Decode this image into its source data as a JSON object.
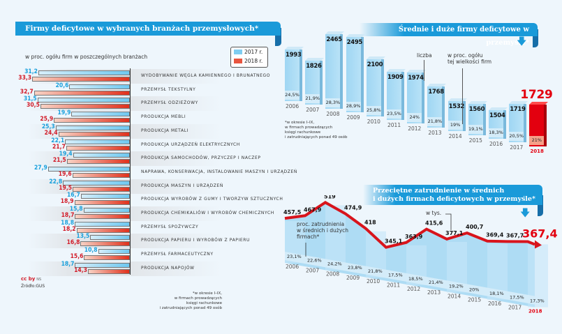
{
  "left_panel": {
    "title": "Firmy deficytowe w wybranych branżach przemysłowych*",
    "subtitle": "w proc. ogółu firm w poszczególnych branżach",
    "legend": [
      {
        "label": "2017 r.",
        "color": "#6ec8f0"
      },
      {
        "label": "2018 r.",
        "color": "#e0311c"
      }
    ],
    "source_icons": "cc by",
    "source_license": "NS",
    "source": "Źródło:GUS",
    "footnote": [
      "*w okresie I–IX,",
      "w firmach prowadzących",
      "księgi rachunkowe",
      "i zatrudniających ponad 49 osób"
    ]
  },
  "chart_data": [
    {
      "type": "bar",
      "orientation": "horizontal",
      "title": "Firmy deficytowe w wybranych branżach przemysłowych*",
      "subtitle": "w proc. ogółu firm w poszczególnych branżach",
      "categories": [
        "WYDOBYWANIE WĘGLA KAMIENNEGO I BRUNATNEGO",
        "PRZEMYSŁ TEKSTYLNY",
        "PRZEMYSŁ ODZIEŻOWY",
        "PRODUKCJA MEBLI",
        "PRODUKCJA METALI",
        "PRODUKCJA URZĄDZEŃ ELEKTRYCZNYCH",
        "PRODUKCJA SAMOCHODÓW, PRZYCZEP I NACZEP",
        "NAPRAWA, KONSERWACJA, INSTALOWANIE  MASZYN I URZĄDZEŃ",
        "PRODUKCJA MASZYN I URZĄDZEŃ",
        "PRODUKCJA WYROBÓW Z GUMY I TWORZYW SZTUCZNYCH",
        "PRODUKCJA CHEMIKALIÓW I WYROBÓW CHEMICZNYCH",
        "PRZEMYSŁ SPOŻYWCZY",
        "PRODUKCJA PAPIERU I WYROBÓW Z PAPIERU",
        "PRZEMYSŁ FARMACEUTYCZNY",
        "PRODUKCJA NAPOJÓW"
      ],
      "series": [
        {
          "name": "2017 r.",
          "values": [
            31.2,
            20.6,
            31.5,
            19.9,
            25.3,
            22.1,
            19.4,
            27.9,
            22.8,
            16.7,
            15.8,
            18.8,
            13.5,
            10.8,
            18.7
          ],
          "labels": [
            "31,2",
            "20,6",
            "31,5",
            "19,9",
            "25,3",
            "22,1",
            "19,4",
            "27,9",
            "22,8",
            "16,7",
            "15,8",
            "18,8",
            "13,5",
            "10,8",
            "18,7"
          ]
        },
        {
          "name": "2018 r.",
          "values": [
            33.3,
            32.7,
            30.5,
            25.9,
            24.4,
            21.7,
            21.5,
            19.6,
            19.5,
            18.9,
            18.7,
            18.2,
            16.8,
            15.6,
            14.3
          ],
          "labels": [
            "33,3",
            "32,7",
            "30,5",
            "25,9",
            "24,4",
            "21,7",
            "21,5",
            "19,6",
            "19,5",
            "18,9",
            "18,7",
            "18,2",
            "16,8",
            "15,6",
            "14,3"
          ]
        }
      ],
      "xlim": [
        0,
        35
      ],
      "legend": "top-right"
    },
    {
      "type": "bar",
      "title": "Średnie i duże firmy deficytowe w przemyśle*",
      "categories": [
        "2006",
        "2007",
        "2008",
        "2009",
        "2010",
        "2011",
        "2012",
        "2013",
        "2014",
        "2015",
        "2016",
        "2017",
        "2018"
      ],
      "series": [
        {
          "name": "liczba",
          "values": [
            1993,
            1826,
            2465,
            2495,
            2100,
            1909,
            1974,
            1768,
            1532,
            1560,
            1504,
            1719,
            1729
          ]
        },
        {
          "name": "w proc. ogółu tej wielkości firm",
          "values": [
            24.5,
            21.9,
            28.3,
            28.9,
            25.8,
            23.5,
            24,
            21.8,
            19,
            19.1,
            18.3,
            20.5,
            21
          ],
          "labels": [
            "24,5%",
            "21,9%",
            "28,3%",
            "28,9%",
            "25,8%",
            "23,5%",
            "24%",
            "21,8%",
            "19%",
            "19,1%",
            "18,3%",
            "20,5%",
            "21%"
          ]
        }
      ],
      "annotations": [
        "liczba",
        "w proc. ogółu tej wielkości firm"
      ],
      "highlight": "2018",
      "footnote": [
        "*w okresie I–IX,",
        "w firmach prowadzących",
        "księgi rachunkowe",
        "i zatrudniających ponad 49 osób"
      ]
    },
    {
      "type": "line",
      "title": "Przeciętne zatrudnienie w średnich i dużych firmach deficytowych w przemyśle*",
      "x": [
        "2006",
        "2007",
        "2008",
        "2009",
        "2010",
        "2011",
        "2012",
        "2013",
        "2014",
        "2015",
        "2016",
        "2017",
        "2018"
      ],
      "series": [
        {
          "name": "w tys.",
          "values": [
            457.5,
            467.9,
            519,
            474.9,
            418,
            345.1,
            363.9,
            415.6,
            377.1,
            400.7,
            369.4,
            367.7,
            367.4
          ],
          "labels": [
            "457,5",
            "467,9",
            "519",
            "474,9",
            "418",
            "345,1",
            "363,9",
            "415,6",
            "377,1",
            "400,7",
            "369,4",
            "367,7",
            "367,4"
          ]
        },
        {
          "name": "proc. zatrudnienia w średnich i dużych firmach*",
          "values": [
            23.1,
            22.6,
            24.2,
            23.8,
            21.8,
            17.5,
            18.5,
            21.4,
            19.2,
            20,
            18.1,
            17.5,
            17.3
          ],
          "labels": [
            "23,1%",
            "22,6%",
            "24,2%",
            "23,8%",
            "21,8%",
            "17,5%",
            "18,5%",
            "21,4%",
            "19,2%",
            "20%",
            "18,1%",
            "17,5%",
            "17,3%"
          ]
        }
      ],
      "annotations": [
        "w tys.",
        "proc. zatrudnienia w średnich i dużych firmach*"
      ],
      "highlight": "2018"
    }
  ],
  "right_top": {
    "title": "Średnie i duże firmy deficytowe w przemyśle*",
    "label_count": "liczba",
    "label_pct": [
      "w proc. ogółu",
      "tej wielkości firm"
    ],
    "footnote": [
      "*w okresie I–IX,",
      "w firmach prowadzących",
      "księgi rachunkowe",
      "i zatrudniających ponad 49 osób"
    ],
    "arrow_icon": "arrow-down",
    "accent": "#1a9ad9",
    "highlight_color": "#e3000f"
  },
  "right_bottom": {
    "title_line1": "Przeciętne zatrudnienie w średnich",
    "title_line2": "i dużych firmach deficytowych w przemyśle*",
    "label_thousands": "w tys.",
    "label_pct": [
      "proc. zatrudnienia",
      "w średnich i dużych",
      "firmach*"
    ],
    "arrow_icon": "arrow-down",
    "line_color": "#d8141c"
  }
}
